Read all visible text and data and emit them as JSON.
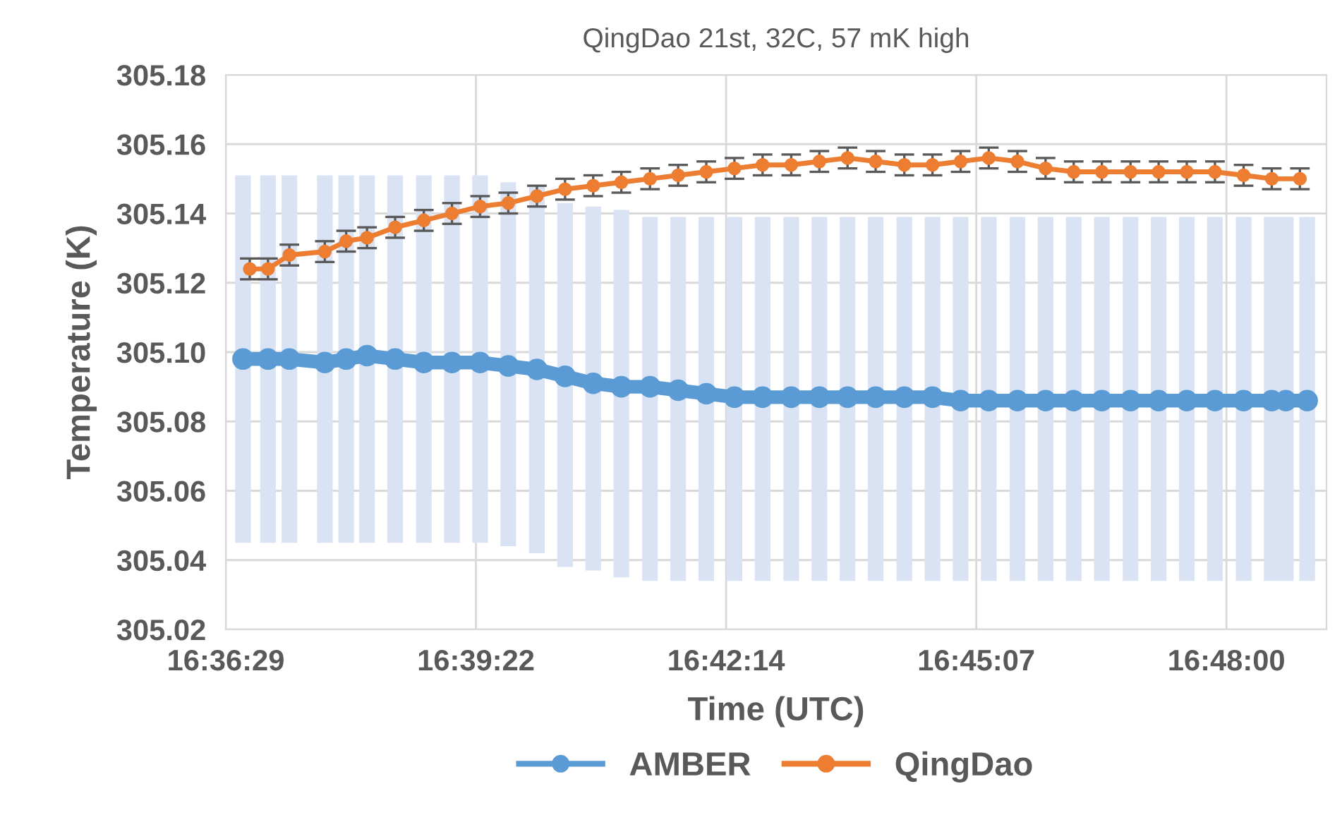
{
  "chart_data": {
    "type": "line",
    "title": "QingDao 21st, 32C, 57 mK high",
    "xlabel": "Time (UTC)",
    "ylabel": "Temperature (K)",
    "xlim": [
      16.608,
      16.8192
    ],
    "xticks": [
      {
        "value": 16.608,
        "label": "16:36:29"
      },
      {
        "value": 16.656,
        "label": "16:39:22"
      },
      {
        "value": 16.704,
        "label": "16:42:14"
      },
      {
        "value": 16.752,
        "label": "16:45:07"
      },
      {
        "value": 16.8,
        "label": "16:48:00"
      }
    ],
    "ylim": [
      305.02,
      305.18
    ],
    "yticks": [
      {
        "value": 305.02,
        "label": "305.02"
      },
      {
        "value": 305.04,
        "label": "305.04"
      },
      {
        "value": 305.06,
        "label": "305.06"
      },
      {
        "value": 305.08,
        "label": "305.08"
      },
      {
        "value": 305.1,
        "label": "305.10"
      },
      {
        "value": 305.12,
        "label": "305.12"
      },
      {
        "value": 305.14,
        "label": "305.14"
      },
      {
        "value": 305.16,
        "label": "305.16"
      },
      {
        "value": 305.18,
        "label": "305.18"
      }
    ],
    "grid": true,
    "legend": "bottom",
    "marker": "circle",
    "line_style": "solid",
    "series": [
      {
        "name": "AMBER",
        "color": "#5b9bd5",
        "x": [
          16.6113,
          16.6161,
          16.6202,
          16.627,
          16.6311,
          16.6351,
          16.6405,
          16.646,
          16.6514,
          16.6568,
          16.6622,
          16.6677,
          16.6731,
          16.6785,
          16.6839,
          16.6894,
          16.6948,
          16.7002,
          16.7056,
          16.711,
          16.7165,
          16.7219,
          16.7273,
          16.7327,
          16.7382,
          16.7436,
          16.749,
          16.7544,
          16.7599,
          16.7653,
          16.7707,
          16.7761,
          16.7816,
          16.787,
          16.7924,
          16.7978,
          16.8033,
          16.8087,
          16.8114,
          16.8155
        ],
        "values": [
          305.098,
          305.098,
          305.098,
          305.097,
          305.098,
          305.099,
          305.098,
          305.097,
          305.097,
          305.097,
          305.096,
          305.095,
          305.093,
          305.091,
          305.09,
          305.09,
          305.089,
          305.088,
          305.087,
          305.087,
          305.087,
          305.087,
          305.087,
          305.087,
          305.087,
          305.087,
          305.086,
          305.086,
          305.086,
          305.086,
          305.086,
          305.086,
          305.086,
          305.086,
          305.086,
          305.086,
          305.086,
          305.086,
          305.086,
          305.086
        ],
        "errors": [
          [
            305.045,
            305.151
          ],
          [
            305.045,
            305.151
          ],
          [
            305.045,
            305.151
          ],
          [
            305.045,
            305.151
          ],
          [
            305.045,
            305.151
          ],
          [
            305.045,
            305.151
          ],
          [
            305.045,
            305.151
          ],
          [
            305.045,
            305.151
          ],
          [
            305.045,
            305.151
          ],
          [
            305.045,
            305.151
          ],
          [
            305.044,
            305.149
          ],
          0.053,
          [
            305.038,
            305.143
          ],
          [
            305.037,
            305.142
          ],
          [
            305.035,
            305.141
          ],
          [
            305.034,
            305.139
          ],
          [
            305.034,
            305.139
          ],
          [
            305.034,
            305.139
          ],
          [
            305.034,
            305.139
          ],
          [
            305.034,
            305.139
          ],
          [
            305.034,
            305.139
          ],
          [
            305.034,
            305.139
          ],
          [
            305.034,
            305.139
          ],
          [
            305.034,
            305.139
          ],
          [
            305.034,
            305.139
          ],
          [
            305.034,
            305.139
          ],
          [
            305.034,
            305.139
          ],
          [
            305.034,
            305.139
          ],
          [
            305.034,
            305.139
          ],
          [
            305.034,
            305.139
          ],
          [
            305.034,
            305.139
          ],
          [
            305.034,
            305.139
          ],
          [
            305.034,
            305.139
          ],
          [
            305.034,
            305.139
          ],
          [
            305.034,
            305.139
          ],
          [
            305.034,
            305.139
          ],
          [
            305.034,
            305.139
          ],
          [
            305.034,
            305.139
          ],
          [
            305.034,
            305.139
          ],
          [
            305.034,
            305.139
          ]
        ]
      },
      {
        "name": "QingDao",
        "color": "#ed7d31",
        "x": [
          16.6126,
          16.6161,
          16.6202,
          16.627,
          16.6311,
          16.6351,
          16.6405,
          16.646,
          16.6514,
          16.6568,
          16.6622,
          16.6677,
          16.6731,
          16.6785,
          16.6839,
          16.6894,
          16.6948,
          16.7002,
          16.7056,
          16.711,
          16.7165,
          16.7219,
          16.7273,
          16.7327,
          16.7382,
          16.7436,
          16.749,
          16.7544,
          16.7599,
          16.7653,
          16.7707,
          16.7761,
          16.7816,
          16.787,
          16.7924,
          16.7978,
          16.8033,
          16.8087,
          16.8141
        ],
        "values": [
          305.124,
          305.124,
          305.128,
          305.129,
          305.132,
          305.133,
          305.136,
          305.138,
          305.14,
          305.142,
          305.143,
          305.145,
          305.147,
          305.148,
          305.149,
          305.15,
          305.151,
          305.152,
          305.153,
          305.154,
          305.154,
          305.155,
          305.156,
          305.155,
          305.154,
          305.154,
          305.155,
          305.156,
          305.155,
          305.153,
          305.152,
          305.152,
          305.152,
          305.152,
          305.152,
          305.152,
          305.151,
          305.15,
          305.15
        ],
        "errors": [
          0.003,
          0.003,
          0.003,
          0.003,
          0.003,
          0.003,
          0.003,
          0.003,
          0.003,
          0.003,
          0.003,
          0.003,
          0.003,
          0.003,
          0.003,
          0.003,
          0.003,
          0.003,
          0.003,
          0.003,
          0.003,
          0.003,
          0.003,
          0.003,
          0.003,
          0.003,
          0.003,
          0.003,
          0.003,
          0.003,
          0.003,
          0.003,
          0.003,
          0.003,
          0.003,
          0.003,
          0.003,
          0.003,
          0.003
        ]
      }
    ]
  }
}
